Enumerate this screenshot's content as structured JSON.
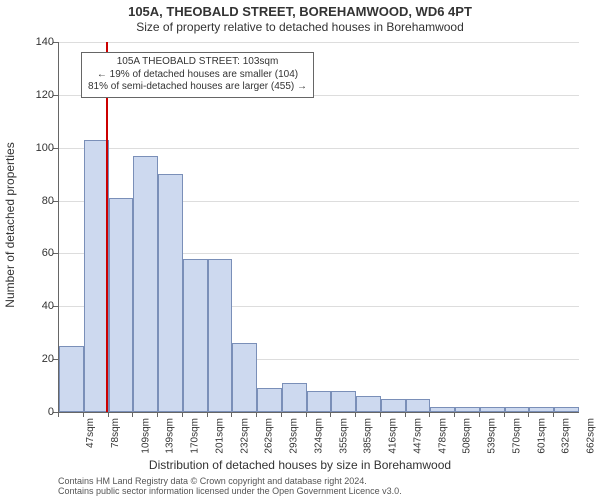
{
  "title": "105A, THEOBALD STREET, BOREHAMWOOD, WD6 4PT",
  "subtitle": "Size of property relative to detached houses in Borehamwood",
  "chart": {
    "type": "histogram",
    "ylabel": "Number of detached properties",
    "xlabel": "Distribution of detached houses by size in Borehamwood",
    "ylim": [
      0,
      140
    ],
    "ytick_step": 20,
    "yticks": [
      0,
      20,
      40,
      60,
      80,
      100,
      120,
      140
    ],
    "x_categories": [
      "47sqm",
      "78sqm",
      "109sqm",
      "139sqm",
      "170sqm",
      "201sqm",
      "232sqm",
      "262sqm",
      "293sqm",
      "324sqm",
      "355sqm",
      "385sqm",
      "416sqm",
      "447sqm",
      "478sqm",
      "508sqm",
      "539sqm",
      "570sqm",
      "601sqm",
      "632sqm",
      "662sqm"
    ],
    "values": [
      25,
      103,
      81,
      97,
      90,
      58,
      58,
      26,
      9,
      11,
      8,
      8,
      6,
      5,
      5,
      2,
      2,
      2,
      2,
      2,
      2
    ],
    "bar_fill": "#cdd9ef",
    "bar_border": "#7a8fb8",
    "background_color": "#ffffff",
    "grid_color": "#dddddd",
    "axis_color": "#666666",
    "marker": {
      "position_x": 103,
      "x_range": [
        47,
        662
      ],
      "color": "#cc0000"
    },
    "annotation": {
      "line1": "105A THEOBALD STREET: 103sqm",
      "line2": "← 19% of detached houses are smaller (104)",
      "line3": "81% of semi-detached houses are larger (455) →",
      "border_color": "#666666",
      "background": "#ffffff",
      "fontsize": 10
    },
    "label_fontsize": 12,
    "tick_fontsize": 11,
    "xtick_fontsize": 10,
    "title_fontsize": 13
  },
  "footer": {
    "line1": "Contains HM Land Registry data © Crown copyright and database right 2024.",
    "line2": "Contains public sector information licensed under the Open Government Licence v3.0."
  }
}
